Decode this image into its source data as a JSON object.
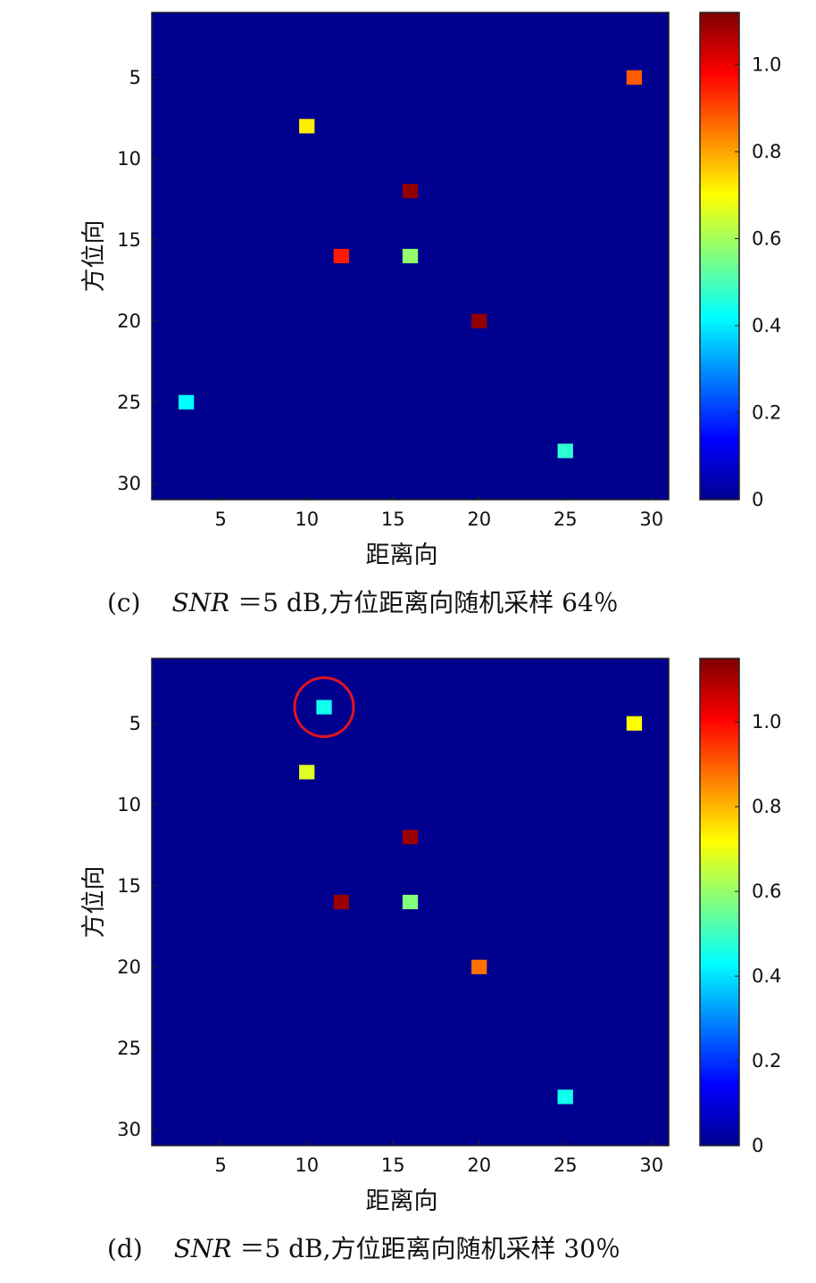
{
  "chart_data": [
    {
      "type": "heatmap",
      "caption": {
        "label": "(c)",
        "snr": "SNR",
        "rest": "＝5 dB,方位距离向随机采样 64％"
      },
      "xlabel": "距离向",
      "ylabel": "方位向",
      "xlim": [
        1,
        31
      ],
      "ylim": [
        1,
        31
      ],
      "xticks": [
        5,
        10,
        15,
        20,
        25,
        30
      ],
      "yticks": [
        5,
        10,
        15,
        20,
        25,
        30
      ],
      "background_value": 0,
      "colorbar": {
        "min": 0,
        "max": 1.12,
        "ticks": [
          0,
          0.2,
          0.4,
          0.6,
          0.8,
          1.0
        ],
        "ticklabels": [
          "0",
          "0.2",
          "0.4",
          "0.6",
          "0.8",
          "1.0"
        ]
      },
      "points": [
        {
          "x": 29,
          "y": 5,
          "value": 0.88
        },
        {
          "x": 10,
          "y": 8,
          "value": 0.72
        },
        {
          "x": 16,
          "y": 12,
          "value": 1.1
        },
        {
          "x": 12,
          "y": 16,
          "value": 0.95
        },
        {
          "x": 16,
          "y": 16,
          "value": 0.58
        },
        {
          "x": 20,
          "y": 20,
          "value": 1.1
        },
        {
          "x": 3,
          "y": 25,
          "value": 0.42
        },
        {
          "x": 25,
          "y": 28,
          "value": 0.47
        }
      ],
      "annotations": []
    },
    {
      "type": "heatmap",
      "caption": {
        "label": "(d)",
        "snr": "SNR",
        "rest": "＝5 dB,方位距离向随机采样 30％"
      },
      "xlabel": "距离向",
      "ylabel": "方位向",
      "xlim": [
        1,
        31
      ],
      "ylim": [
        1,
        31
      ],
      "xticks": [
        5,
        10,
        15,
        20,
        25,
        30
      ],
      "yticks": [
        5,
        10,
        15,
        20,
        25,
        30
      ],
      "background_value": 0,
      "colorbar": {
        "min": 0,
        "max": 1.15,
        "ticks": [
          0,
          0.2,
          0.4,
          0.6,
          0.8,
          1.0
        ],
        "ticklabels": [
          "0",
          "0.2",
          "0.4",
          "0.6",
          "0.8",
          "1.0"
        ]
      },
      "points": [
        {
          "x": 11,
          "y": 4,
          "value": 0.45
        },
        {
          "x": 29,
          "y": 5,
          "value": 0.72
        },
        {
          "x": 10,
          "y": 8,
          "value": 0.68
        },
        {
          "x": 16,
          "y": 12,
          "value": 1.12
        },
        {
          "x": 12,
          "y": 16,
          "value": 1.12
        },
        {
          "x": 16,
          "y": 16,
          "value": 0.58
        },
        {
          "x": 20,
          "y": 20,
          "value": 0.88
        },
        {
          "x": 25,
          "y": 28,
          "value": 0.45
        }
      ],
      "annotations": [
        {
          "type": "circle",
          "x": 11,
          "y": 4,
          "color": "#e0141e"
        }
      ]
    }
  ]
}
